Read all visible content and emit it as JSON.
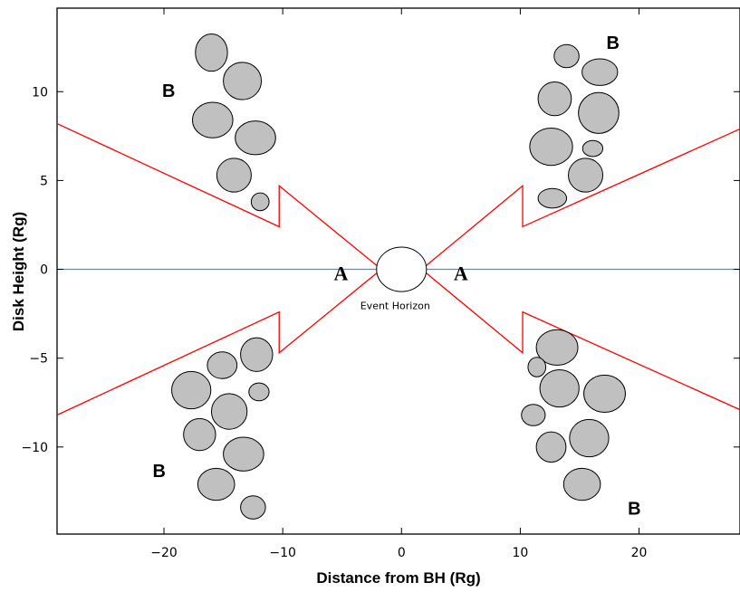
{
  "chart_data": {
    "type": "scatter",
    "xlabel": "Distance from BH (Rg)",
    "ylabel": "Disk Height (Rg)",
    "xlim": [
      -29,
      28.5
    ],
    "ylim": [
      -14.9,
      14.7
    ],
    "x_ticks": [
      -20,
      -10,
      0,
      10,
      20
    ],
    "y_ticks": [
      -10,
      -5,
      0,
      5,
      10
    ],
    "x_tick_labels": [
      "−20",
      "−10",
      "0",
      "10",
      "20"
    ],
    "y_tick_labels": [
      "−10",
      "−5",
      "0",
      "5",
      "10"
    ],
    "disk_plane_y": 0,
    "grid": false,
    "event_horizon": {
      "x": 0,
      "y": 0,
      "rx": 2.1,
      "ry": 1.25,
      "label": "Event Horizon"
    },
    "clumps": [
      {
        "x": -16.0,
        "y": 12.2,
        "rx": 1.35,
        "ry": 1.05
      },
      {
        "x": -13.4,
        "y": 10.6,
        "rx": 1.6,
        "ry": 1.05
      },
      {
        "x": -15.9,
        "y": 8.4,
        "rx": 1.7,
        "ry": 1.0
      },
      {
        "x": -12.3,
        "y": 7.4,
        "rx": 1.7,
        "ry": 0.95
      },
      {
        "x": -14.1,
        "y": 5.3,
        "rx": 1.45,
        "ry": 0.95
      },
      {
        "x": -11.9,
        "y": 3.8,
        "rx": 0.75,
        "ry": 0.5
      },
      {
        "x": 13.9,
        "y": 12.0,
        "rx": 1.05,
        "ry": 0.65
      },
      {
        "x": 16.7,
        "y": 11.1,
        "rx": 1.5,
        "ry": 0.75
      },
      {
        "x": 12.9,
        "y": 9.6,
        "rx": 1.4,
        "ry": 0.95
      },
      {
        "x": 16.6,
        "y": 8.8,
        "rx": 1.7,
        "ry": 1.15
      },
      {
        "x": 12.6,
        "y": 6.9,
        "rx": 1.8,
        "ry": 1.05
      },
      {
        "x": 16.1,
        "y": 6.8,
        "rx": 0.85,
        "ry": 0.45
      },
      {
        "x": 15.5,
        "y": 5.3,
        "rx": 1.45,
        "ry": 0.95
      },
      {
        "x": 12.7,
        "y": 4.0,
        "rx": 1.2,
        "ry": 0.55
      },
      {
        "x": -12.2,
        "y": -4.8,
        "rx": 1.35,
        "ry": 0.95
      },
      {
        "x": -15.1,
        "y": -5.4,
        "rx": 1.25,
        "ry": 0.75
      },
      {
        "x": -17.7,
        "y": -6.8,
        "rx": 1.65,
        "ry": 1.05
      },
      {
        "x": -12.0,
        "y": -6.9,
        "rx": 0.85,
        "ry": 0.5
      },
      {
        "x": -14.5,
        "y": -8.0,
        "rx": 1.5,
        "ry": 1.0
      },
      {
        "x": -17.0,
        "y": -9.3,
        "rx": 1.35,
        "ry": 0.9
      },
      {
        "x": -13.3,
        "y": -10.4,
        "rx": 1.7,
        "ry": 0.95
      },
      {
        "x": -15.6,
        "y": -12.1,
        "rx": 1.55,
        "ry": 0.9
      },
      {
        "x": -12.5,
        "y": -13.4,
        "rx": 1.05,
        "ry": 0.65
      },
      {
        "x": 13.1,
        "y": -4.4,
        "rx": 1.75,
        "ry": 1.0
      },
      {
        "x": 11.4,
        "y": -5.5,
        "rx": 0.75,
        "ry": 0.55
      },
      {
        "x": 13.3,
        "y": -6.7,
        "rx": 1.65,
        "ry": 1.05
      },
      {
        "x": 17.1,
        "y": -7.0,
        "rx": 1.75,
        "ry": 1.05
      },
      {
        "x": 11.1,
        "y": -8.2,
        "rx": 1.0,
        "ry": 0.6
      },
      {
        "x": 15.8,
        "y": -9.5,
        "rx": 1.65,
        "ry": 1.05
      },
      {
        "x": 12.6,
        "y": -10.0,
        "rx": 1.25,
        "ry": 0.85
      },
      {
        "x": 15.2,
        "y": -12.1,
        "rx": 1.55,
        "ry": 0.9
      }
    ],
    "funnel_outline": [
      [
        [
          -29,
          8.2
        ],
        [
          -10.3,
          2.4
        ],
        [
          -10.3,
          4.7
        ],
        [
          -1.7,
          0
        ],
        [
          -10.3,
          -4.7
        ],
        [
          -10.3,
          -2.4
        ],
        [
          -29,
          -8.2
        ]
      ],
      [
        [
          28.5,
          7.9
        ],
        [
          10.2,
          2.4
        ],
        [
          10.2,
          4.7
        ],
        [
          1.7,
          0
        ],
        [
          10.2,
          -4.7
        ],
        [
          10.2,
          -2.4
        ],
        [
          28.5,
          -7.9
        ]
      ]
    ],
    "annotations": [
      {
        "text": "A",
        "x": -5.1,
        "y": -0.6,
        "style": "a"
      },
      {
        "text": "A",
        "x": 5.0,
        "y": -0.6,
        "style": "a"
      },
      {
        "text": "B",
        "x": -19.6,
        "y": 9.7,
        "style": "b"
      },
      {
        "text": "B",
        "x": 17.8,
        "y": 12.4,
        "style": "b"
      },
      {
        "text": "B",
        "x": -20.4,
        "y": -11.7,
        "style": "b"
      },
      {
        "text": "B",
        "x": 19.6,
        "y": -13.8,
        "style": "b"
      }
    ],
    "colors": {
      "clump_fill": "#c0c0c0",
      "disk_plane": "#4a90d9",
      "funnel": "#ff0000",
      "background": "#ffffff"
    }
  }
}
